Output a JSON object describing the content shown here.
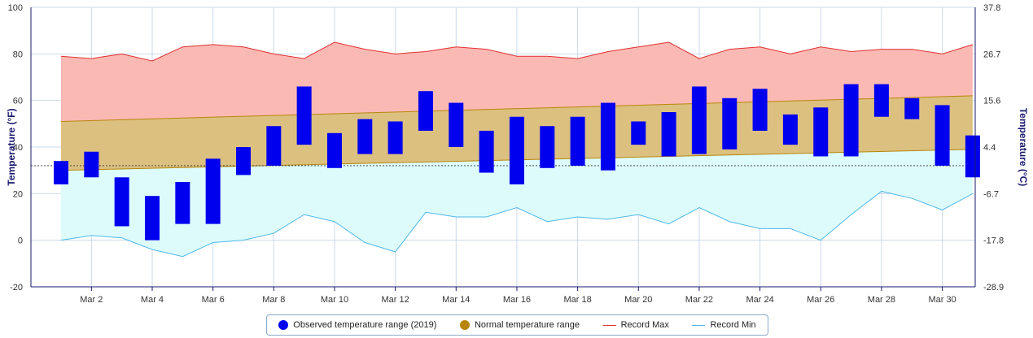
{
  "chart_data": {
    "type": "bar",
    "y_axis_left": {
      "title": "Temperature (°F)",
      "ylim": [
        -20,
        100
      ],
      "ticks": [
        -20,
        0,
        20,
        40,
        60,
        80,
        100
      ]
    },
    "y_axis_right": {
      "title": "Temperature (°C)",
      "ticks": [
        -28.9,
        -17.8,
        -6.7,
        4.4,
        15.6,
        26.7,
        37.8
      ]
    },
    "x_axis": {
      "days": [
        1,
        31
      ],
      "tick_days": [
        2,
        4,
        6,
        8,
        10,
        12,
        14,
        16,
        18,
        20,
        22,
        24,
        26,
        28,
        30
      ],
      "tick_labels": [
        "Mar 2",
        "Mar 4",
        "Mar 6",
        "Mar 8",
        "Mar 10",
        "Mar 12",
        "Mar 14",
        "Mar 16",
        "Mar 18",
        "Mar 20",
        "Mar 22",
        "Mar 24",
        "Mar 26",
        "Mar 28",
        "Mar 30"
      ]
    },
    "freezing_line": 32,
    "series": [
      {
        "name": "Observed temperature range (2019)",
        "color": "#0000ee",
        "low": [
          24,
          27,
          6,
          0,
          7,
          7,
          28,
          32,
          41,
          31,
          37,
          37,
          47,
          40,
          29,
          24,
          31,
          32,
          30,
          41,
          36,
          37,
          39,
          47,
          41,
          36,
          36,
          53,
          52,
          32,
          27
        ],
        "high": [
          34,
          38,
          27,
          19,
          25,
          35,
          40,
          49,
          66,
          46,
          52,
          51,
          64,
          59,
          47,
          53,
          49,
          53,
          59,
          51,
          55,
          66,
          61,
          65,
          54,
          57,
          67,
          67,
          61,
          58,
          45
        ]
      },
      {
        "name": "Normal temperature range",
        "color": "#b8860b",
        "low": [
          30,
          39
        ],
        "high": [
          51,
          62
        ]
      },
      {
        "name": "Record Max",
        "color": "#e03030",
        "values": [
          79,
          78,
          80,
          77,
          83,
          84,
          83,
          80,
          78,
          85,
          82,
          80,
          81,
          83,
          82,
          79,
          79,
          78,
          81,
          83,
          85,
          78,
          82,
          83,
          80,
          83,
          81,
          82,
          82,
          80,
          84
        ]
      },
      {
        "name": "Record Min",
        "color": "#4db8e8",
        "values": [
          0,
          2,
          1,
          -4,
          -7,
          -1,
          0,
          3,
          11,
          8,
          -1,
          -5,
          12,
          10,
          10,
          14,
          8,
          10,
          9,
          11,
          7,
          14,
          8,
          5,
          5,
          0,
          11,
          21,
          18,
          13,
          20
        ]
      }
    ],
    "grid": true,
    "legend_position": "bottom"
  },
  "legend": {
    "items": [
      {
        "label": "Observed temperature range (2019)",
        "color": "#0000ee"
      },
      {
        "label": "Normal temperature range",
        "color": "#b8860b"
      },
      {
        "label": "Record Max",
        "color": "#e03030"
      },
      {
        "label": "Record Min",
        "color": "#4db8e8"
      }
    ]
  }
}
